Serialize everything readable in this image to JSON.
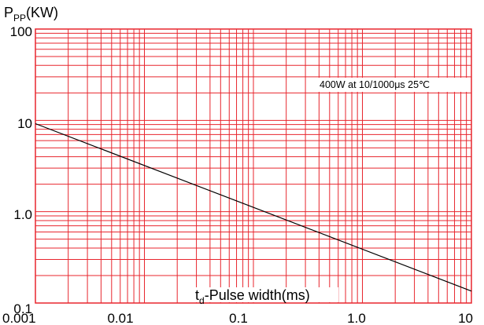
{
  "chart_data": {
    "type": "line",
    "title": "",
    "ylabel": {
      "main": "P",
      "sub": "PP",
      "unit": "(KW)"
    },
    "xlabel": {
      "main": "t",
      "sub": "d",
      "rest": "-Pulse width(ms)"
    },
    "x_scale": "log",
    "y_scale": "log",
    "xlim": [
      0.001,
      10
    ],
    "ylim": [
      0.1,
      100
    ],
    "x_tick_labels": [
      "0.001",
      "0.01",
      "0.1",
      "1.0",
      "10"
    ],
    "y_tick_labels": [
      "0.1",
      "1.0",
      "10",
      "100"
    ],
    "grid": true,
    "grid_color": "#e8262e",
    "line_color": "#000000",
    "annotation": "400W at 10/1000μs 25℃",
    "series": [
      {
        "x": [
          0.001,
          10
        ],
        "y": [
          9.2,
          0.135
        ]
      }
    ]
  }
}
